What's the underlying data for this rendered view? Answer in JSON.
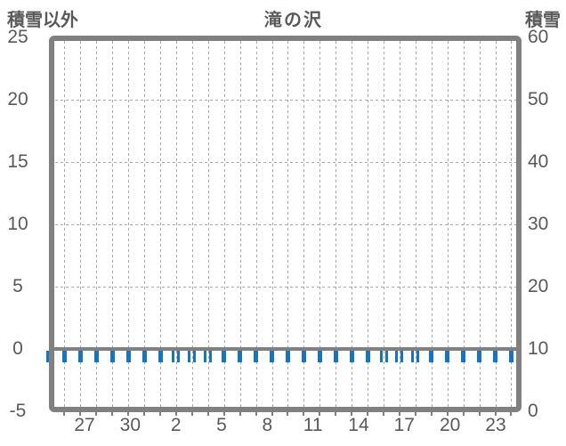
{
  "header": {
    "left_axis_title": "積雪以外",
    "chart_title": "滝の沢",
    "right_axis_title": "積雪"
  },
  "chart_data": {
    "type": "bar",
    "title": "滝の沢",
    "left_axis": {
      "label": "積雪以外",
      "min": -5,
      "max": 25,
      "tick_labels": [
        "25",
        "20",
        "15",
        "10",
        "5",
        "0",
        "-5"
      ]
    },
    "right_axis": {
      "label": "積雪",
      "min": 0,
      "max": 60,
      "tick_labels": [
        "60",
        "50",
        "40",
        "30",
        "20",
        "10",
        "0"
      ]
    },
    "x_axis": {
      "tick_labels": [
        "27",
        "30",
        "2",
        "5",
        "8",
        "11",
        "14",
        "17",
        "20",
        "23"
      ],
      "num_slots": 30,
      "note": "day-of-month labels every 3rd slot; vertical dashed gridline at every slot"
    },
    "series": [
      {
        "name": "積雪以外",
        "type": "bar",
        "values": [
          -1,
          -1,
          -1,
          -1,
          -1,
          -1,
          -1,
          -1,
          -1,
          -1,
          -1,
          -1,
          -1,
          -1,
          -1,
          -1,
          -1,
          -1,
          -1,
          -1,
          -1,
          -1,
          -1,
          -1,
          -1,
          -1,
          -1,
          -1,
          -1,
          -1
        ],
        "double_bar_slots": [
          8,
          9,
          10,
          21,
          22,
          23
        ],
        "baseline": 0
      }
    ],
    "zero_line": true,
    "grid": "dashed",
    "legend": "none"
  },
  "colors": {
    "bar_blue": "#1874bd",
    "axis_gray": "#808080",
    "grid_gray": "#a9a9a9",
    "text_gray": "#595959",
    "background": "#ffffff"
  }
}
